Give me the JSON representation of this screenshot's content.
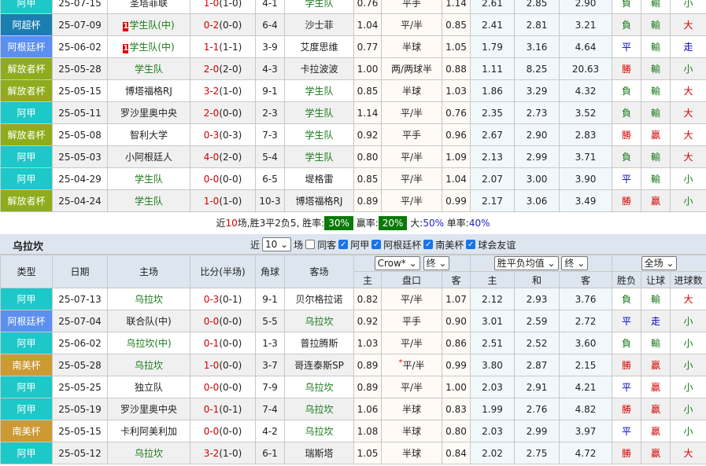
{
  "colors": {
    "阿甲": "#1cc8c8",
    "阿超杯": "#1a7fb0",
    "阿根廷杯": "#5b8ff0",
    "解放者杯": "#8fac1c",
    "南美杯": "#cc9933"
  },
  "top_rows": [
    {
      "type": "阿甲",
      "date": "25-07-15",
      "home": "圣塔菲联",
      "home_hl": false,
      "score": "1-0",
      "half": "(1-0)",
      "corner": "4-1",
      "away": "学生队",
      "away_hl": true,
      "o1": "0.76",
      "pk": "平手",
      "o2": "1.14",
      "e1": "2.61",
      "e2": "2.85",
      "e3": "2.90",
      "wl": "負",
      "rq": "輸",
      "ou": "小"
    },
    {
      "type": "阿超杯",
      "date": "25-07-09",
      "home": "学生队(中)",
      "home_hl": true,
      "rank": "1",
      "score": "0-2",
      "half": "(0-0)",
      "corner": "6-4",
      "away": "沙士菲",
      "away_hl": false,
      "o1": "1.04",
      "pk": "平/半",
      "o2": "0.85",
      "e1": "2.41",
      "e2": "2.81",
      "e3": "3.21",
      "wl": "負",
      "rq": "輸",
      "ou": "大"
    },
    {
      "type": "阿根廷杯",
      "date": "25-06-02",
      "home": "学生队(中)",
      "home_hl": true,
      "rank": "1",
      "score": "1-1",
      "half": "(1-1)",
      "corner": "3-9",
      "away": "艾度思维",
      "away_hl": false,
      "o1": "0.77",
      "pk": "半球",
      "o2": "1.05",
      "e1": "1.79",
      "e2": "3.16",
      "e3": "4.64",
      "wl": "平",
      "rq": "輸",
      "ou": "走"
    },
    {
      "type": "解放者杯",
      "date": "25-05-28",
      "home": "学生队",
      "home_hl": true,
      "score": "2-0",
      "half": "(2-0)",
      "corner": "4-3",
      "away": "卡拉波波",
      "away_hl": false,
      "o1": "1.00",
      "pk": "两/两球半",
      "o2": "0.88",
      "e1": "1.11",
      "e2": "8.25",
      "e3": "20.63",
      "wl": "勝",
      "rq": "輸",
      "ou": "小"
    },
    {
      "type": "解放者杯",
      "date": "25-05-15",
      "home": "博塔福格RJ",
      "home_hl": false,
      "score": "3-2",
      "half": "(1-0)",
      "corner": "9-1",
      "away": "学生队",
      "away_hl": true,
      "o1": "0.85",
      "pk": "半球",
      "o2": "1.03",
      "e1": "1.86",
      "e2": "3.29",
      "e3": "4.32",
      "wl": "負",
      "rq": "輸",
      "ou": "大"
    },
    {
      "type": "阿甲",
      "date": "25-05-11",
      "home": "罗沙里奥中央",
      "home_hl": false,
      "score": "2-0",
      "half": "(0-0)",
      "corner": "2-3",
      "away": "学生队",
      "away_hl": true,
      "o1": "1.14",
      "pk": "平/半",
      "o2": "0.76",
      "e1": "2.35",
      "e2": "2.73",
      "e3": "3.52",
      "wl": "負",
      "rq": "輸",
      "ou": "大"
    },
    {
      "type": "解放者杯",
      "date": "25-05-08",
      "home": "智利大学",
      "home_hl": false,
      "score": "0-3",
      "half": "(0-3)",
      "corner": "7-3",
      "away": "学生队",
      "away_hl": true,
      "o1": "0.92",
      "pk": "平手",
      "o2": "0.96",
      "e1": "2.67",
      "e2": "2.90",
      "e3": "2.83",
      "wl": "勝",
      "rq": "贏",
      "ou": "大"
    },
    {
      "type": "阿甲",
      "date": "25-05-03",
      "home": "小阿根廷人",
      "home_hl": false,
      "score": "4-0",
      "half": "(2-0)",
      "corner": "5-4",
      "away": "学生队",
      "away_hl": true,
      "o1": "0.80",
      "pk": "平/半",
      "o2": "1.09",
      "e1": "2.13",
      "e2": "2.99",
      "e3": "3.71",
      "wl": "負",
      "rq": "輸",
      "ou": "大"
    },
    {
      "type": "阿甲",
      "date": "25-04-29",
      "home": "学生队",
      "home_hl": true,
      "score": "0-0",
      "half": "(0-0)",
      "corner": "6-5",
      "away": "堤格雷",
      "away_hl": false,
      "o1": "0.85",
      "pk": "平/半",
      "o2": "1.04",
      "e1": "2.07",
      "e2": "3.00",
      "e3": "3.90",
      "wl": "平",
      "rq": "輸",
      "ou": "小"
    },
    {
      "type": "解放者杯",
      "date": "25-04-24",
      "home": "学生队",
      "home_hl": true,
      "score": "1-0",
      "half": "(1-0)",
      "corner": "10-3",
      "away": "博塔福格RJ",
      "away_hl": false,
      "o1": "0.89",
      "pk": "平/半",
      "o2": "0.99",
      "e1": "2.17",
      "e2": "3.06",
      "e3": "3.49",
      "wl": "勝",
      "rq": "贏",
      "ou": "小"
    }
  ],
  "summary": {
    "p1": "近",
    "n": "10",
    "p2": "场,胜",
    "w": "3",
    "p3": "平",
    "d": "2",
    "p4": "负",
    "l": "5",
    "p5": ", 胜率:",
    "win_rate": "30%",
    "p6": " 赢率:",
    "cover_rate": "20%",
    "p7": " 大:",
    "over_rate": "50%",
    "p8": " 单率:",
    "odd_rate": "40%"
  },
  "section": {
    "title": "乌拉坎",
    "recent_label": "近",
    "recent_value": "10",
    "unit": "场",
    "filters": [
      {
        "label": "同客",
        "checked": false
      },
      {
        "label": "阿甲",
        "checked": true
      },
      {
        "label": "阿根廷杯",
        "checked": true
      },
      {
        "label": "南美杯",
        "checked": true
      },
      {
        "label": "球会友谊",
        "checked": true
      }
    ],
    "headers": {
      "type": "类型",
      "date": "日期",
      "home": "主场",
      "score": "比分(半场)",
      "corner": "角球",
      "away": "客场",
      "company": "Crow*",
      "final1": "终",
      "avg": "胜平负均值",
      "final2": "终",
      "scope": "全场",
      "sub": [
        "主",
        "盘口",
        "客",
        "主",
        "和",
        "客",
        "胜负",
        "让球",
        "进球数"
      ]
    }
  },
  "bottom_rows": [
    {
      "type": "阿甲",
      "date": "25-07-13",
      "home": "乌拉坎",
      "home_hl": true,
      "score": "0-3",
      "half": "(0-1)",
      "corner": "9-1",
      "away": "贝尔格拉诺",
      "away_hl": false,
      "o1": "0.82",
      "pk": "平/半",
      "o2": "1.07",
      "e1": "2.12",
      "e2": "2.93",
      "e3": "3.76",
      "wl": "負",
      "rq": "輸",
      "ou": "大"
    },
    {
      "type": "阿根廷杯",
      "date": "25-07-04",
      "home": "联合队(中)",
      "home_hl": false,
      "score": "0-0",
      "half": "(0-0)",
      "corner": "5-5",
      "away": "乌拉坎",
      "away_hl": true,
      "o1": "0.92",
      "pk": "平手",
      "o2": "0.90",
      "e1": "3.01",
      "e2": "2.59",
      "e3": "2.72",
      "wl": "平",
      "rq": "走",
      "ou": "小"
    },
    {
      "type": "阿甲",
      "date": "25-06-02",
      "home": "乌拉坎(中)",
      "home_hl": true,
      "score": "0-1",
      "half": "(0-0)",
      "corner": "1-3",
      "away": "普拉腾斯",
      "away_hl": false,
      "o1": "1.03",
      "pk": "平/半",
      "o2": "0.86",
      "e1": "2.51",
      "e2": "2.52",
      "e3": "3.60",
      "wl": "負",
      "rq": "輸",
      "ou": "小"
    },
    {
      "type": "南美杯",
      "date": "25-05-28",
      "home": "乌拉坎",
      "home_hl": true,
      "score": "1-0",
      "half": "(0-0)",
      "corner": "3-7",
      "away": "哥连泰斯SP",
      "away_hl": false,
      "o1": "0.89",
      "pk": "平/半",
      "star": "*",
      "o2": "0.99",
      "e1": "3.80",
      "e2": "2.87",
      "e3": "2.15",
      "wl": "勝",
      "rq": "贏",
      "ou": "小"
    },
    {
      "type": "阿甲",
      "date": "25-05-25",
      "home": "独立队",
      "home_hl": false,
      "score": "0-0",
      "half": "(0-0)",
      "corner": "7-9",
      "away": "乌拉坎",
      "away_hl": true,
      "o1": "0.89",
      "pk": "平/半",
      "o2": "1.00",
      "e1": "2.03",
      "e2": "2.91",
      "e3": "4.21",
      "wl": "平",
      "rq": "贏",
      "ou": "小"
    },
    {
      "type": "阿甲",
      "date": "25-05-19",
      "home": "罗沙里奥中央",
      "home_hl": false,
      "score": "0-1",
      "half": "(0-1)",
      "corner": "7-4",
      "away": "乌拉坎",
      "away_hl": true,
      "o1": "1.06",
      "pk": "半球",
      "o2": "0.83",
      "e1": "1.99",
      "e2": "2.76",
      "e3": "4.82",
      "wl": "勝",
      "rq": "贏",
      "ou": "小"
    },
    {
      "type": "南美杯",
      "date": "25-05-15",
      "home": "卡利阿美利加",
      "home_hl": false,
      "score": "0-0",
      "half": "(0-0)",
      "corner": "4-2",
      "away": "乌拉坎",
      "away_hl": true,
      "o1": "1.08",
      "pk": "半球",
      "o2": "0.80",
      "e1": "2.03",
      "e2": "2.99",
      "e3": "3.97",
      "wl": "平",
      "rq": "贏",
      "ou": "小"
    },
    {
      "type": "阿甲",
      "date": "25-05-12",
      "home": "乌拉坎",
      "home_hl": true,
      "score": "3-2",
      "half": "(1-0)",
      "corner": "6-1",
      "away": "瑞斯塔",
      "away_hl": false,
      "o1": "1.05",
      "pk": "半球",
      "o2": "0.84",
      "e1": "2.02",
      "e2": "2.75",
      "e3": "4.72",
      "wl": "勝",
      "rq": "贏",
      "ou": "大"
    }
  ]
}
